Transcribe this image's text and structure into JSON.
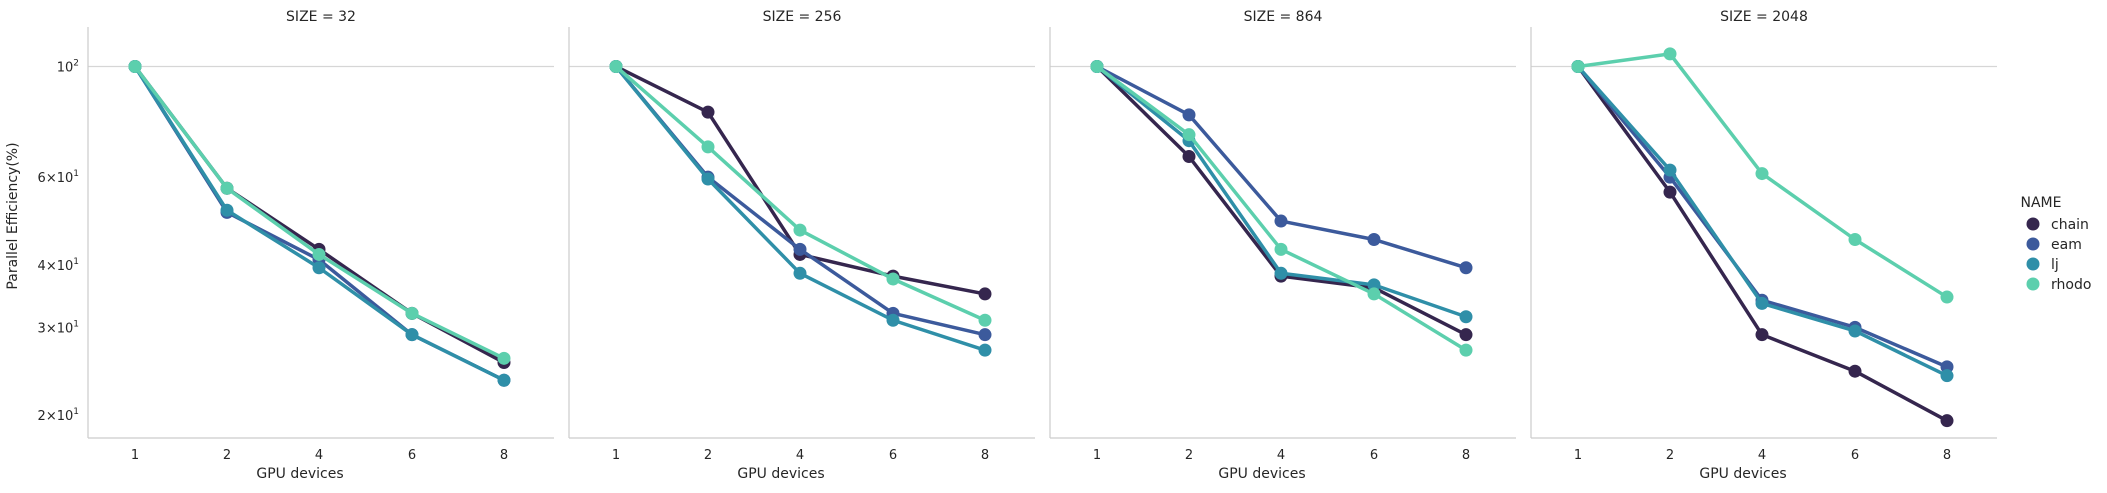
{
  "chart_data": {
    "type": "line",
    "facet_label": "SIZE",
    "xlabel": "GPU devices",
    "ylabel": "Parallel Efficiency(%)",
    "x_categories": [
      "1",
      "2",
      "4",
      "6",
      "8"
    ],
    "yscale": "log",
    "ylim": [
      18,
      120
    ],
    "yticks": [
      {
        "value": 20,
        "base": "2×10",
        "exp": "1"
      },
      {
        "value": 30,
        "base": "3×10",
        "exp": "1"
      },
      {
        "value": 40,
        "base": "4×10",
        "exp": "1"
      },
      {
        "value": 60,
        "base": "6×10",
        "exp": "1"
      },
      {
        "value": 100,
        "base": "10",
        "exp": "2"
      }
    ],
    "grid": "horizontal",
    "legend": {
      "title": "NAME",
      "placement": "right",
      "entries": [
        {
          "name": "chain",
          "color": "#35264e"
        },
        {
          "name": "eam",
          "color": "#3c5a9c"
        },
        {
          "name": "lj",
          "color": "#2f8fa8"
        },
        {
          "name": "rhodo",
          "color": "#5ccfad"
        }
      ]
    },
    "panels": [
      {
        "title": "SIZE = 32",
        "series": [
          {
            "name": "chain",
            "values": [
              100,
              57,
              43,
              32,
              25.5
            ]
          },
          {
            "name": "eam",
            "values": [
              100,
              51,
              41,
              29,
              23.5
            ]
          },
          {
            "name": "lj",
            "values": [
              100,
              51.5,
              39.5,
              29,
              23.5
            ]
          },
          {
            "name": "rhodo",
            "values": [
              100,
              57,
              42,
              32,
              26
            ]
          }
        ]
      },
      {
        "title": "SIZE = 256",
        "series": [
          {
            "name": "chain",
            "values": [
              100,
              81,
              42,
              38,
              35
            ]
          },
          {
            "name": "eam",
            "values": [
              100,
              60,
              43,
              32,
              29
            ]
          },
          {
            "name": "lj",
            "values": [
              100,
              59.5,
              38.5,
              31,
              27
            ]
          },
          {
            "name": "rhodo",
            "values": [
              100,
              69,
              47,
              37.5,
              31
            ]
          }
        ]
      },
      {
        "title": "SIZE = 864",
        "series": [
          {
            "name": "chain",
            "values": [
              100,
              66,
              38,
              36,
              29
            ]
          },
          {
            "name": "eam",
            "values": [
              100,
              80,
              49,
              45,
              39.5
            ]
          },
          {
            "name": "lj",
            "values": [
              100,
              71,
              38.5,
              36.5,
              31.5
            ]
          },
          {
            "name": "rhodo",
            "values": [
              100,
              73,
              43,
              35,
              27
            ]
          }
        ]
      },
      {
        "title": "SIZE = 2048",
        "series": [
          {
            "name": "chain",
            "values": [
              100,
              56,
              29,
              24.5,
              19.5
            ]
          },
          {
            "name": "eam",
            "values": [
              100,
              60,
              34,
              30,
              25
            ]
          },
          {
            "name": "lj",
            "values": [
              100,
              62,
              33.5,
              29.5,
              24
            ]
          },
          {
            "name": "rhodo",
            "values": [
              100,
              106,
              61,
              45,
              34.5
            ]
          }
        ]
      }
    ]
  }
}
